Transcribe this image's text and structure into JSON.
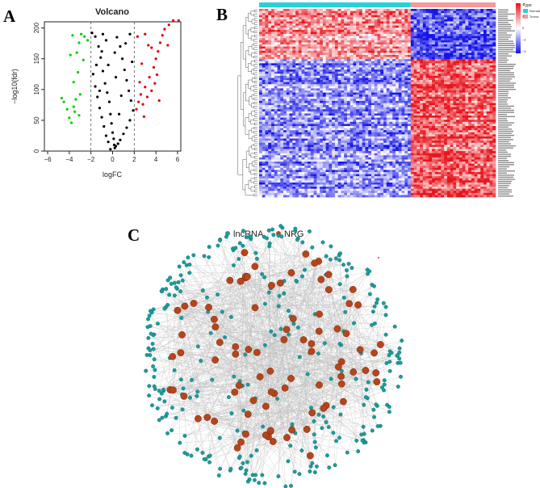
{
  "panels": {
    "a": "A",
    "b": "B",
    "c": "C"
  },
  "chart_data": [
    {
      "type": "scatter",
      "title": "Volcano",
      "xlabel": "logFC",
      "ylabel": "−log10(fdr)",
      "xlim": [
        -6.3,
        6.3
      ],
      "ylim": [
        0,
        210
      ],
      "xticks": [
        "−6",
        "−4",
        "−2",
        "0",
        "2",
        "4",
        "6"
      ],
      "yticks": [
        "0",
        "50",
        "100",
        "150",
        "200"
      ],
      "threshold_lines": {
        "x": [
          -2,
          2
        ],
        "style": "dashed"
      },
      "series": [
        {
          "color": "#00d000",
          "points": [
            [
              -4.7,
              86
            ],
            [
              -4.5,
              80
            ],
            [
              -4.2,
              68
            ],
            [
              -4.0,
              54
            ],
            [
              -3.8,
              46
            ],
            [
              -3.6,
              72
            ],
            [
              -3.5,
              64
            ],
            [
              -3.4,
              84
            ],
            [
              -3.1,
              58
            ],
            [
              -3.0,
              92
            ],
            [
              -3.3,
              160
            ],
            [
              -3.7,
              188
            ],
            [
              -3.1,
              176
            ],
            [
              -2.9,
              190
            ],
            [
              -2.6,
              186
            ],
            [
              -2.3,
              180
            ],
            [
              -2.7,
              148
            ],
            [
              -3.9,
              156
            ],
            [
              -3.2,
              128
            ],
            [
              -3.6,
              112
            ]
          ]
        },
        {
          "color": "#000000",
          "points": [
            [
              -1.9,
              192
            ],
            [
              -1.6,
              186
            ],
            [
              -1.3,
              170
            ],
            [
              -1.1,
              152
            ],
            [
              -0.9,
              130
            ],
            [
              -0.7,
              110
            ],
            [
              -0.5,
              95
            ],
            [
              -0.3,
              80
            ],
            [
              -0.2,
              60
            ],
            [
              -0.1,
              45
            ],
            [
              0.0,
              30
            ],
            [
              0.1,
              20
            ],
            [
              0.15,
              10
            ],
            [
              0.2,
              5
            ],
            [
              -0.4,
              15
            ],
            [
              -0.6,
              25
            ],
            [
              -0.8,
              40
            ],
            [
              -1.0,
              55
            ],
            [
              -1.2,
              70
            ],
            [
              -1.4,
              88
            ],
            [
              -1.6,
              105
            ],
            [
              -1.8,
              125
            ],
            [
              -1.5,
              140
            ],
            [
              -1.0,
              162
            ],
            [
              -0.6,
              180
            ],
            [
              0.4,
              185
            ],
            [
              0.7,
              170
            ],
            [
              0.9,
              150
            ],
            [
              1.1,
              132
            ],
            [
              1.3,
              115
            ],
            [
              1.5,
              98
            ],
            [
              1.7,
              82
            ],
            [
              1.9,
              66
            ],
            [
              1.6,
              50
            ],
            [
              1.3,
              38
            ],
            [
              1.0,
              28
            ],
            [
              0.7,
              18
            ],
            [
              0.5,
              12
            ],
            [
              0.3,
              8
            ],
            [
              -0.2,
              3
            ],
            [
              0.6,
              60
            ],
            [
              0.8,
              90
            ],
            [
              1.2,
              175
            ],
            [
              1.6,
              190
            ],
            [
              -1.2,
              98
            ],
            [
              -0.4,
              140
            ],
            [
              0.3,
              120
            ],
            [
              0.2,
              160
            ],
            [
              -0.9,
              190
            ],
            [
              1.8,
              145
            ]
          ]
        },
        {
          "color": "#e00000",
          "points": [
            [
              2.2,
              68
            ],
            [
              2.4,
              80
            ],
            [
              2.6,
              92
            ],
            [
              2.8,
              76
            ],
            [
              3.0,
              104
            ],
            [
              3.2,
              88
            ],
            [
              3.4,
              120
            ],
            [
              3.6,
              98
            ],
            [
              3.8,
              136
            ],
            [
              4.0,
              150
            ],
            [
              4.2,
              162
            ],
            [
              4.4,
              176
            ],
            [
              4.6,
              188
            ],
            [
              4.8,
              198
            ],
            [
              5.2,
              205
            ],
            [
              5.6,
              212
            ],
            [
              6.1,
              212
            ],
            [
              2.5,
              112
            ],
            [
              3.3,
              172
            ],
            [
              2.3,
              186
            ],
            [
              3.0,
              190
            ],
            [
              3.9,
              110
            ],
            [
              2.9,
              56
            ],
            [
              2.7,
              142
            ],
            [
              4.1,
              124
            ],
            [
              5.1,
              172
            ],
            [
              4.3,
              82
            ],
            [
              3.6,
              168
            ]
          ]
        }
      ]
    },
    {
      "type": "heatmap",
      "legend": {
        "title": "Type",
        "items": [
          "Normal",
          "Tumor"
        ],
        "colors": [
          "#2ad0d8",
          "#f39a9a"
        ]
      },
      "colorscale": {
        "ticks": [
          "4",
          "2",
          "0",
          "−2",
          "−4"
        ],
        "high": "#e8141c",
        "mid": "#ffffff",
        "low": "#1414e8"
      },
      "groups": {
        "normal_fraction": 0.64
      },
      "block_pattern": {
        "upper_fraction": 0.27,
        "upper_normal": "high",
        "upper_tumor": "low",
        "lower_normal": "low",
        "lower_tumor": "high"
      }
    },
    {
      "type": "network",
      "legend": [
        {
          "label": "lncRNA",
          "color": "#1c9a9a"
        },
        {
          "label": "NRG",
          "color": "#b5451b"
        }
      ],
      "node_counts": {
        "lncRNA": 330,
        "NRG": 90
      }
    }
  ]
}
